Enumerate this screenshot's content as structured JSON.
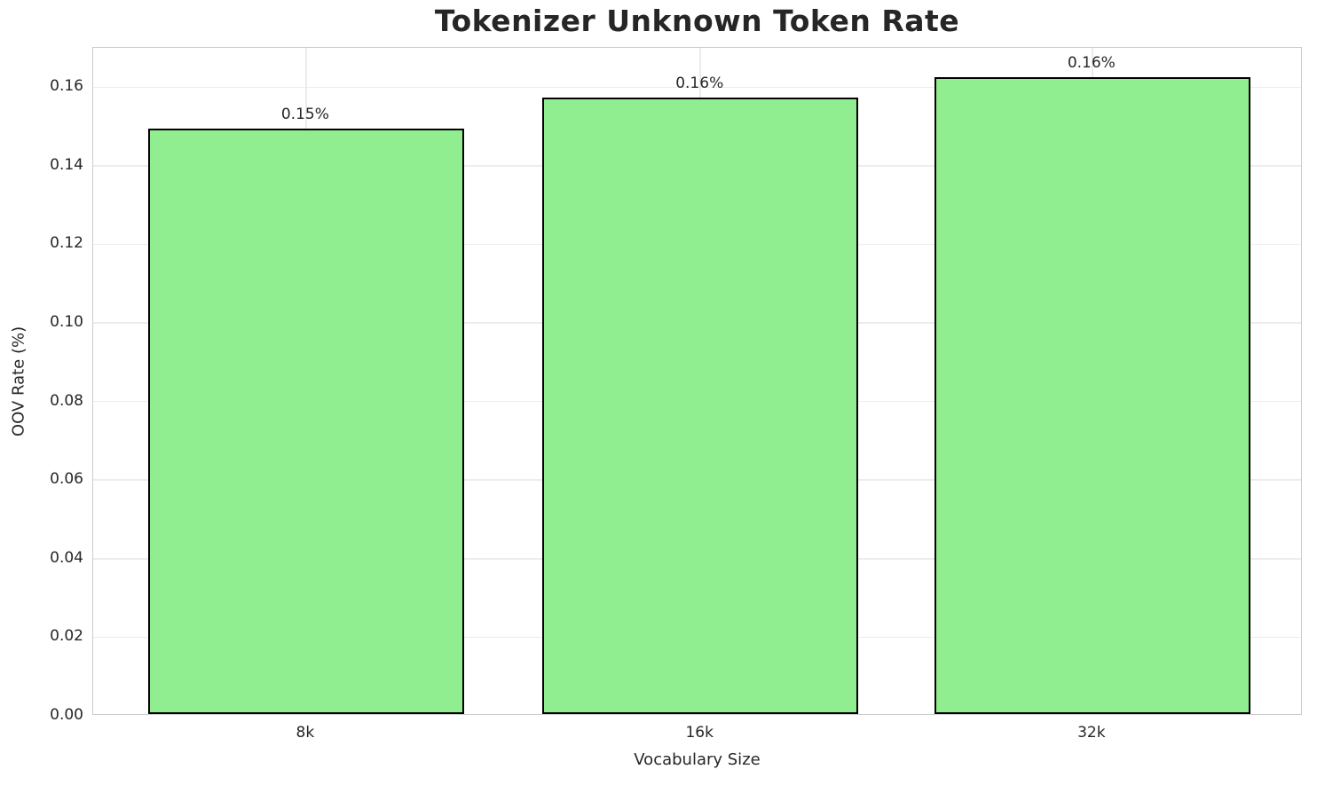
{
  "chart_data": {
    "type": "bar",
    "title": "Tokenizer Unknown Token Rate",
    "xlabel": "Vocabulary Size",
    "ylabel": "OOV Rate (%)",
    "categories": [
      "8k",
      "16k",
      "32k"
    ],
    "values": [
      0.149,
      0.157,
      0.162
    ],
    "bar_labels": [
      "0.15%",
      "0.16%",
      "0.16%"
    ],
    "ylim": [
      0,
      0.17
    ],
    "yticks": [
      0.0,
      0.02,
      0.04,
      0.06,
      0.08,
      0.1,
      0.12,
      0.14,
      0.16
    ],
    "ytick_labels": [
      "0.00",
      "0.02",
      "0.04",
      "0.06",
      "0.08",
      "0.10",
      "0.12",
      "0.14",
      "0.16"
    ],
    "grid": true,
    "legend": null,
    "style": {
      "bar_color": "#90EE90",
      "bar_edge_color": "#000000",
      "grid_color": "#ececec",
      "spine_color": "#cccccc",
      "text_color": "#262626",
      "background": "#ffffff"
    }
  }
}
